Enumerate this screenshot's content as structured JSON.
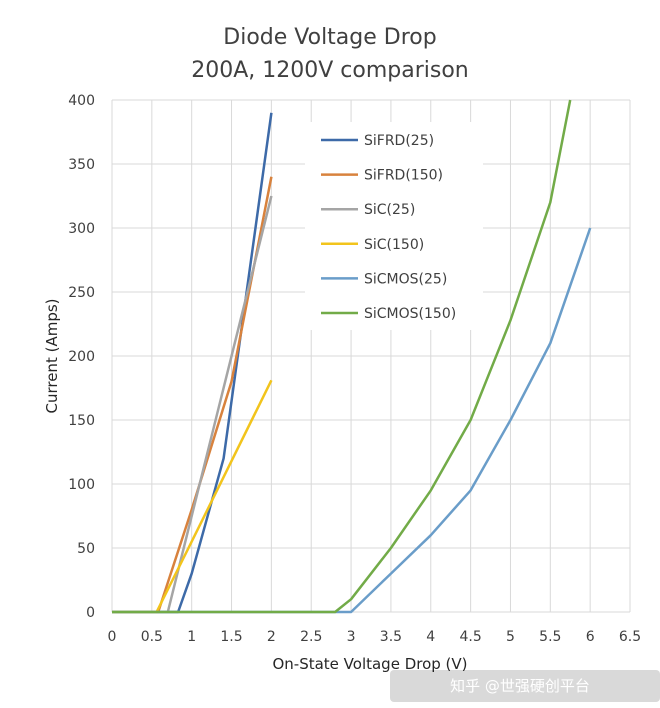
{
  "chart_data": {
    "type": "line",
    "title": "Diode Voltage Drop",
    "subtitle": "200A, 1200V comparison",
    "xlabel": "On-State Voltage Drop (V)",
    "ylabel": "Current (Amps)",
    "xlim": [
      0,
      6.5
    ],
    "ylim": [
      0,
      400
    ],
    "xticks": [
      "0",
      "0.5",
      "1",
      "1.5",
      "2",
      "2.5",
      "3",
      "3.5",
      "4",
      "4.5",
      "5",
      "5.5",
      "6",
      "6.5"
    ],
    "yticks": [
      "0",
      "50",
      "100",
      "150",
      "200",
      "250",
      "300",
      "350",
      "400"
    ],
    "grid": true,
    "legend_position": "top-center",
    "series": [
      {
        "name": "SiFRD(25)",
        "color": "#3d6aa8",
        "x": [
          0,
          0.83,
          1.0,
          1.4,
          2.0
        ],
        "y": [
          0,
          0,
          30,
          120,
          390
        ]
      },
      {
        "name": "SiFRD(150)",
        "color": "#d8823d",
        "x": [
          0,
          0.58,
          1.0,
          1.5,
          2.0
        ],
        "y": [
          0,
          0,
          80,
          180,
          340
        ]
      },
      {
        "name": "SiC(25)",
        "color": "#a5a5a5",
        "x": [
          0,
          0.7,
          1.3,
          2.0
        ],
        "y": [
          0,
          0,
          150,
          325
        ]
      },
      {
        "name": "SiC(150)",
        "color": "#f2c41c",
        "x": [
          0,
          0.56,
          1.0,
          2.0
        ],
        "y": [
          0,
          0,
          55,
          181
        ]
      },
      {
        "name": "SiCMOS(25)",
        "color": "#6a9dc9",
        "x": [
          0,
          3.0,
          3.5,
          4.0,
          4.5,
          5.0,
          5.5,
          6.0
        ],
        "y": [
          0,
          0,
          30,
          60,
          95,
          150,
          210,
          300
        ]
      },
      {
        "name": "SiCMOS(150)",
        "color": "#72ab48",
        "x": [
          0,
          2.8,
          3.0,
          3.5,
          4.0,
          4.5,
          5.0,
          5.5,
          5.75
        ],
        "y": [
          0,
          0,
          10,
          50,
          95,
          150,
          228,
          320,
          400
        ]
      }
    ]
  },
  "watermark": {
    "text": "知乎 @世强硬创平台"
  }
}
